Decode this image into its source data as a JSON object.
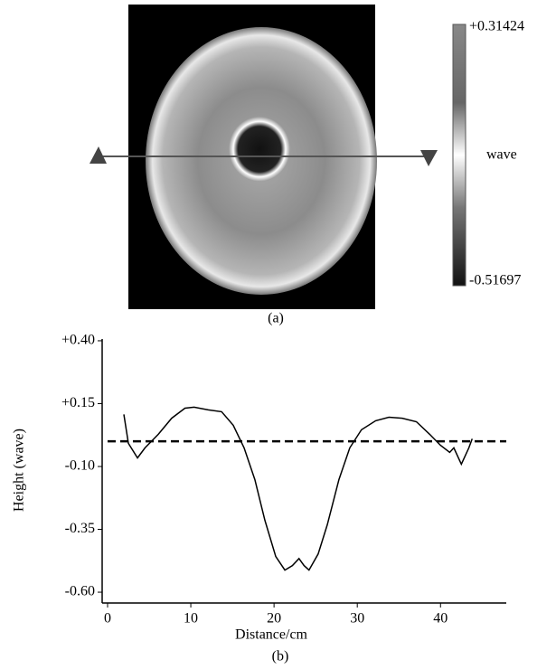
{
  "panel_a": {
    "caption": "(a)",
    "colorbar": {
      "label": "wave",
      "ticks": [
        {
          "value": 0.31424,
          "label": "+0.31424"
        },
        {
          "value": -0.51697,
          "label": "-0.51697"
        }
      ]
    }
  },
  "chart_data": {
    "type": "line",
    "caption": "(b)",
    "x_label": "Distance/cm",
    "y_label": "Height (wave)",
    "x": [
      1.96,
      2.5,
      3.6,
      4.5,
      6.1,
      7.7,
      9.3,
      10.4,
      12.1,
      13.7,
      15.1,
      16.4,
      17.7,
      18.9,
      20.2,
      21.3,
      22.2,
      23.0,
      23.6,
      24.2,
      25.3,
      26.4,
      27.8,
      29.1,
      30.5,
      32.2,
      33.8,
      35.4,
      37.1,
      38.7,
      40.0,
      41.1,
      41.6,
      42.5,
      43.4,
      43.8
    ],
    "values": [
      0.107,
      -0.008,
      -0.066,
      -0.026,
      0.028,
      0.092,
      0.132,
      0.136,
      0.125,
      0.118,
      0.064,
      -0.026,
      -0.152,
      -0.314,
      -0.458,
      -0.512,
      -0.494,
      -0.466,
      -0.494,
      -0.512,
      -0.448,
      -0.332,
      -0.152,
      -0.026,
      0.046,
      0.082,
      0.096,
      0.092,
      0.078,
      0.028,
      -0.016,
      -0.044,
      -0.026,
      -0.091,
      -0.026,
      0.01
    ],
    "color": "#000000",
    "reference_y": 0,
    "xlim": [
      -0.65,
      47.9
    ],
    "ylim": [
      -0.643,
      0.407
    ],
    "xticks": [
      0,
      10,
      20,
      30,
      40
    ],
    "yticks": [
      {
        "value": 0.4,
        "label": "+0.40"
      },
      {
        "value": 0.15,
        "label": "+0.15"
      },
      {
        "value": -0.1,
        "label": "-0.10"
      },
      {
        "value": -0.35,
        "label": "-0.35"
      },
      {
        "value": -0.6,
        "label": "-0.60"
      }
    ]
  }
}
